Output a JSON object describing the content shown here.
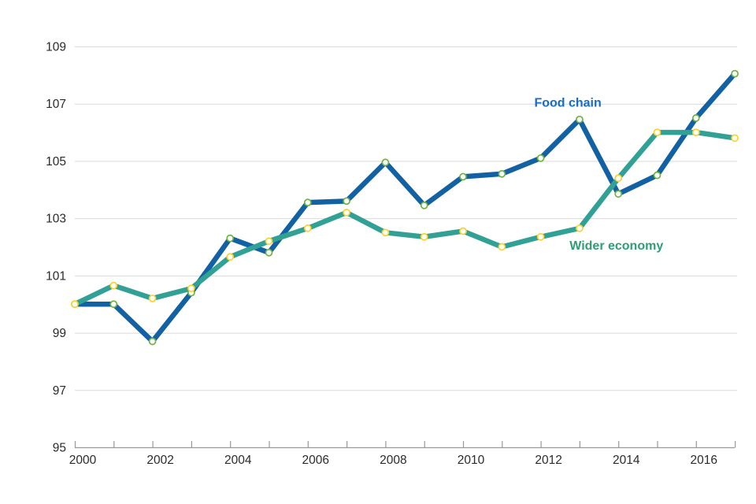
{
  "chart_data": {
    "type": "line",
    "title": "",
    "xlabel": "",
    "ylabel": "",
    "x": [
      2000,
      2001,
      2002,
      2003,
      2004,
      2005,
      2006,
      2007,
      2008,
      2009,
      2010,
      2011,
      2012,
      2013,
      2014,
      2015,
      2016,
      2017
    ],
    "series": [
      {
        "name": "Food chain",
        "color": "#1261a3",
        "marker_fill": "#ffffff",
        "marker_ring": "#6cb33f",
        "values": [
          100.0,
          100.0,
          98.7,
          100.4,
          102.3,
          101.8,
          103.55,
          103.6,
          104.95,
          103.45,
          104.45,
          104.55,
          105.1,
          106.45,
          103.85,
          104.5,
          106.5,
          108.05
        ]
      },
      {
        "name": "Wider economy",
        "color": "#31a195",
        "marker_fill": "#ffffff",
        "marker_ring": "#ffd02b",
        "values": [
          100.0,
          100.65,
          100.2,
          100.55,
          101.65,
          102.2,
          102.65,
          103.2,
          102.5,
          102.35,
          102.55,
          102.0,
          102.35,
          102.65,
          104.4,
          106.0,
          106.0,
          105.8
        ]
      }
    ],
    "annotations": [
      {
        "text": "Food chain",
        "color": "#1a6cc2",
        "x_year": 2012.7,
        "y_value": 107.05
      },
      {
        "text": "Wider economy",
        "color": "#2f9e74",
        "x_year": 2013.95,
        "y_value": 102.05
      }
    ],
    "ylim": [
      95,
      109
    ],
    "yticks": [
      "95",
      "97",
      "99",
      "101",
      "103",
      "105",
      "107",
      "109"
    ],
    "ytick_values": [
      95,
      97,
      99,
      101,
      103,
      105,
      107,
      109
    ],
    "xtick_years": [
      2000,
      2001,
      2002,
      2003,
      2004,
      2005,
      2006,
      2007,
      2008,
      2009,
      2010,
      2011,
      2012,
      2013,
      2014,
      2015,
      2016,
      2017
    ],
    "xtick_labels": [
      "2000",
      "2002",
      "2004",
      "2006",
      "2008",
      "2010",
      "2012",
      "2014",
      "2016"
    ],
    "xtick_label_years": [
      2000,
      2002,
      2004,
      2006,
      2008,
      2010,
      2012,
      2014,
      2016
    ],
    "grid": "horizontal",
    "legend": "inline-annotations",
    "colors": {
      "background": "#ffffff",
      "gridline": "#d9d9d9",
      "axis": "#999999",
      "tick_text": "#2b2b2b"
    }
  }
}
